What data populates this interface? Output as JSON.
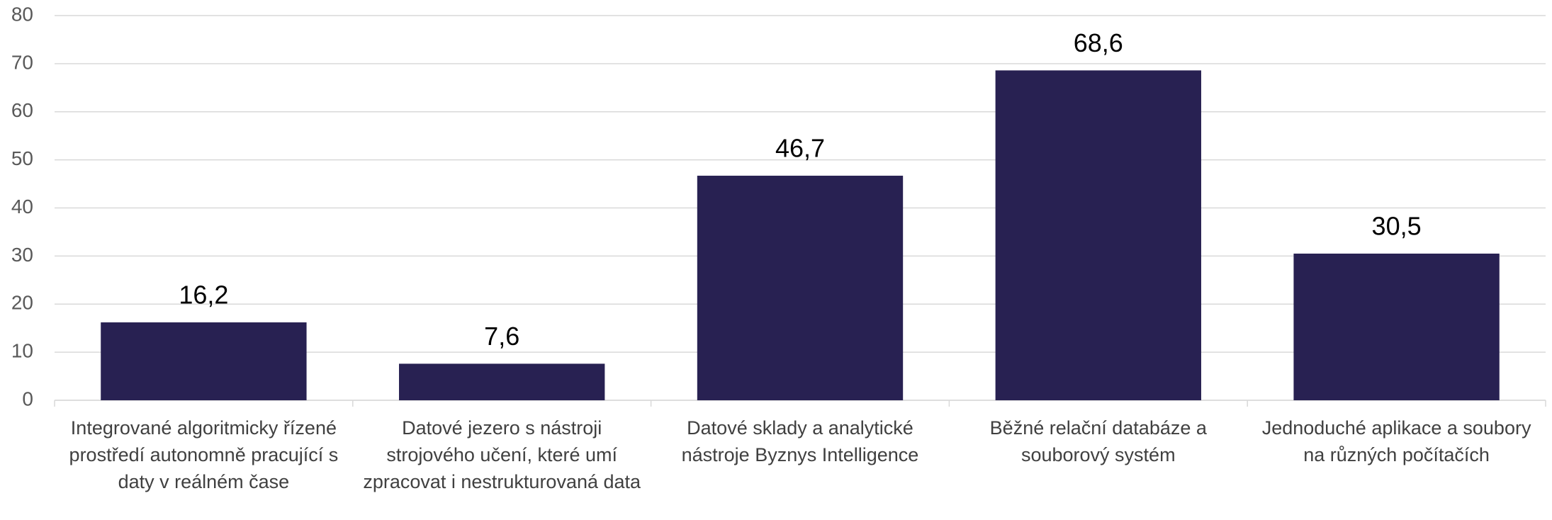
{
  "chart_data": {
    "type": "bar",
    "categories": [
      "Integrované algoritmicky řízené prostředí autonomně pracující s daty v reálném čase",
      "Datové jezero s nástroji strojového učení, které umí zpracovat i nestrukturovaná data",
      "Datové sklady a analytické nástroje Byznys Intelligence",
      "Běžné relační databáze a souborový systém",
      "Jednoduché aplikace a soubory na různých počítačích"
    ],
    "values": [
      16.2,
      7.6,
      46.7,
      68.6,
      30.5
    ],
    "value_labels": [
      "16,2",
      "7,6",
      "46,7",
      "68,6",
      "30,5"
    ],
    "color": "#282152",
    "ylim": [
      0,
      80
    ],
    "yticks": [
      0,
      10,
      20,
      30,
      40,
      50,
      60,
      70,
      80
    ],
    "grid": true
  }
}
